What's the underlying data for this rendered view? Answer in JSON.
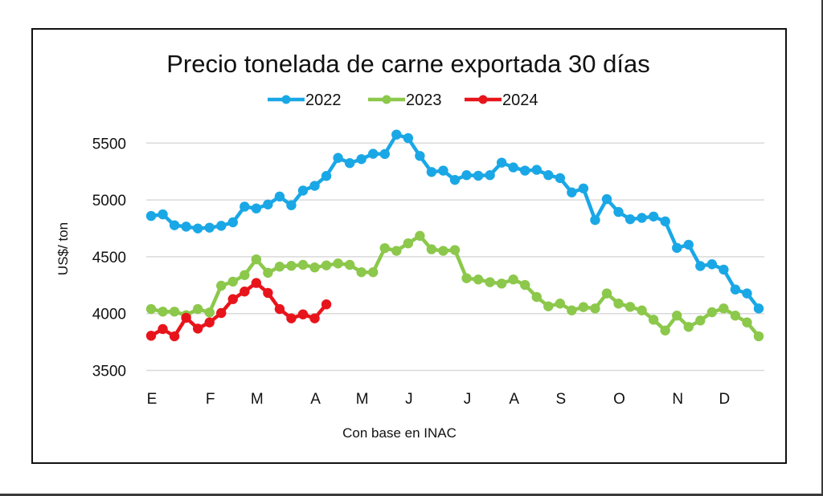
{
  "chart_data": {
    "type": "line",
    "title": "Precio tonelada de carne exportada 30 días",
    "xlabel": "Con base en INAC",
    "ylabel": "US$/ ton",
    "ylim": [
      3500,
      5600
    ],
    "yticks": [
      3500,
      4000,
      4500,
      5000,
      5500
    ],
    "grid": true,
    "legend_position": "top",
    "x_unit": "week index (0 = first week of January)",
    "xlim": [
      0,
      52
    ],
    "month_ticks": [
      {
        "label": "E",
        "x": 0
      },
      {
        "label": "F",
        "x": 5
      },
      {
        "label": "M",
        "x": 9
      },
      {
        "label": "A",
        "x": 14
      },
      {
        "label": "M",
        "x": 18
      },
      {
        "label": "J",
        "x": 22
      },
      {
        "label": "J",
        "x": 27
      },
      {
        "label": "A",
        "x": 31
      },
      {
        "label": "S",
        "x": 35
      },
      {
        "label": "O",
        "x": 40
      },
      {
        "label": "N",
        "x": 45
      },
      {
        "label": "D",
        "x": 49
      }
    ],
    "series": [
      {
        "name": "2022",
        "color": "#1aa7e6",
        "values": [
          4859,
          4873,
          4777,
          4765,
          4749,
          4756,
          4772,
          4803,
          4941,
          4925,
          4960,
          5030,
          4953,
          5082,
          5124,
          5211,
          5370,
          5324,
          5359,
          5406,
          5404,
          5575,
          5544,
          5387,
          5246,
          5258,
          5176,
          5218,
          5213,
          5218,
          5328,
          5286,
          5258,
          5265,
          5218,
          5192,
          5066,
          5101,
          4823,
          5007,
          4894,
          4830,
          4842,
          4854,
          4811,
          4578,
          4606,
          4418,
          4434,
          4387,
          4212,
          4177,
          4045
        ]
      },
      {
        "name": "2023",
        "color": "#8cc84b",
        "values": [
          4040,
          4017,
          4017,
          3986,
          4040,
          4010,
          4245,
          4281,
          4339,
          4477,
          4359,
          4413,
          4420,
          4429,
          4406,
          4424,
          4441,
          4429,
          4364,
          4364,
          4576,
          4552,
          4618,
          4684,
          4566,
          4552,
          4559,
          4311,
          4300,
          4276,
          4264,
          4300,
          4252,
          4146,
          4064,
          4088,
          4028,
          4057,
          4045,
          4177,
          4088,
          4059,
          4028,
          3946,
          3851,
          3982,
          3883,
          3939,
          4012,
          4045,
          3982,
          3922,
          3800
        ]
      },
      {
        "name": "2024",
        "color": "#e8141b",
        "values": [
          3805,
          3864,
          3800,
          3963,
          3868,
          3922,
          4005,
          4127,
          4194,
          4269,
          4182,
          4040,
          3958,
          3993,
          3958,
          4081
        ]
      }
    ]
  }
}
